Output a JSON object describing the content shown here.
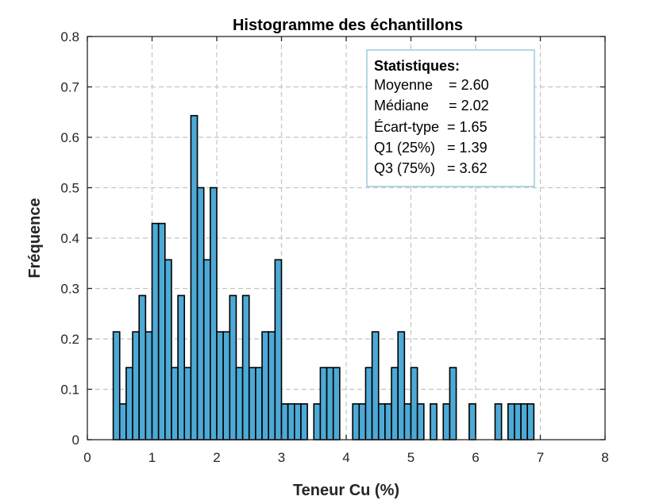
{
  "chart_data": {
    "type": "bar",
    "title": "Histogramme des échantillons",
    "xlabel": "Teneur Cu (%)",
    "ylabel": "Fréquence",
    "xlim": [
      0,
      8
    ],
    "ylim": [
      0,
      0.8
    ],
    "xticks": [
      "0",
      "1",
      "2",
      "3",
      "4",
      "5",
      "6",
      "7",
      "8"
    ],
    "yticks": [
      "0",
      "0.1",
      "0.2",
      "0.3",
      "0.4",
      "0.5",
      "0.6",
      "0.7",
      "0.8"
    ],
    "grid": true,
    "bar_color": "#4DA9D5",
    "bar_edge_color": "#000000",
    "bin_edges_start": 0.4,
    "bin_width": 0.1,
    "values": [
      0.214,
      0.071,
      0.143,
      0.214,
      0.286,
      0.214,
      0.429,
      0.429,
      0.357,
      0.143,
      0.286,
      0.143,
      0.643,
      0.5,
      0.357,
      0.5,
      0.214,
      0.214,
      0.286,
      0.143,
      0.286,
      0.143,
      0.143,
      0.214,
      0.214,
      0.357,
      0.071,
      0.071,
      0.071,
      0.071,
      0,
      0.071,
      0.143,
      0.143,
      0.143,
      0,
      0,
      0.071,
      0.071,
      0.143,
      0.214,
      0.071,
      0.071,
      0.143,
      0.214,
      0.071,
      0.143,
      0.071,
      0,
      0.071,
      0,
      0.071,
      0.143,
      0,
      0,
      0.071,
      0,
      0,
      0,
      0.071,
      0,
      0.071,
      0.071,
      0.071,
      0.071
    ]
  },
  "stats_box": {
    "heading": "Statistiques:",
    "lines": [
      "Moyenne    = 2.60",
      "Médiane     = 2.02",
      "Écart-type  = 1.65",
      "Q1 (25%)   = 1.39",
      "Q3 (75%)   = 3.62"
    ],
    "border_color": "#7FBFD6"
  }
}
